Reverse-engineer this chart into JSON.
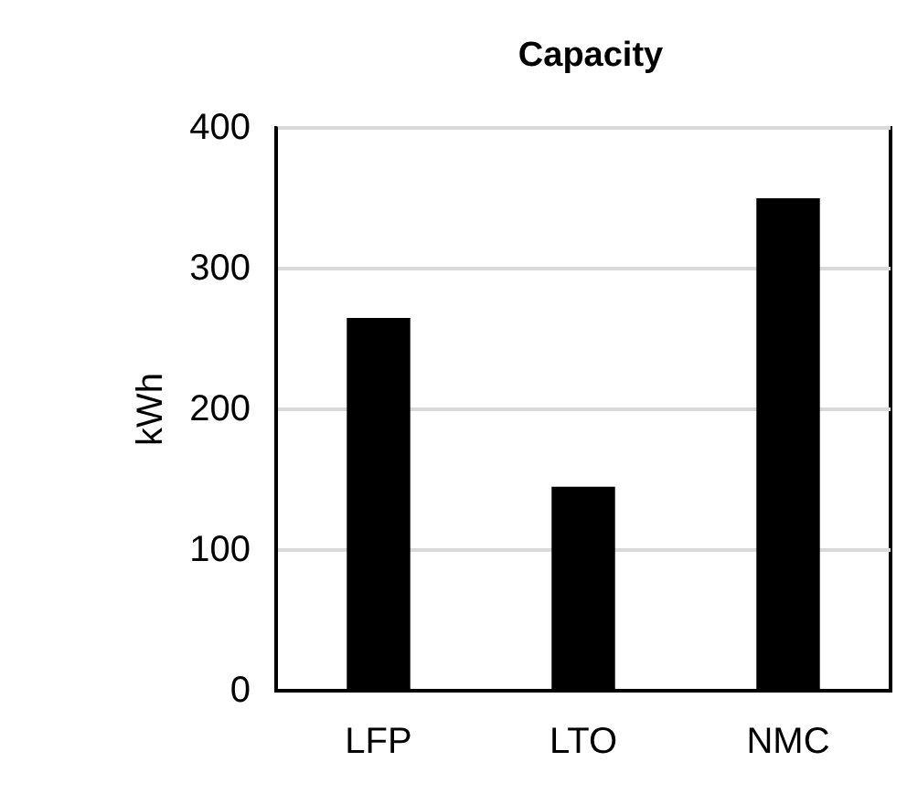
{
  "chart_data": {
    "type": "bar",
    "title": "Capacity",
    "ylabel": "kWh",
    "categories": [
      "LFP",
      "LTO",
      "NMC"
    ],
    "values": [
      265,
      145,
      350
    ],
    "color": "#000000",
    "ylim": [
      0,
      400
    ],
    "yticks": [
      0,
      100,
      200,
      300,
      400
    ],
    "grid": "y"
  }
}
